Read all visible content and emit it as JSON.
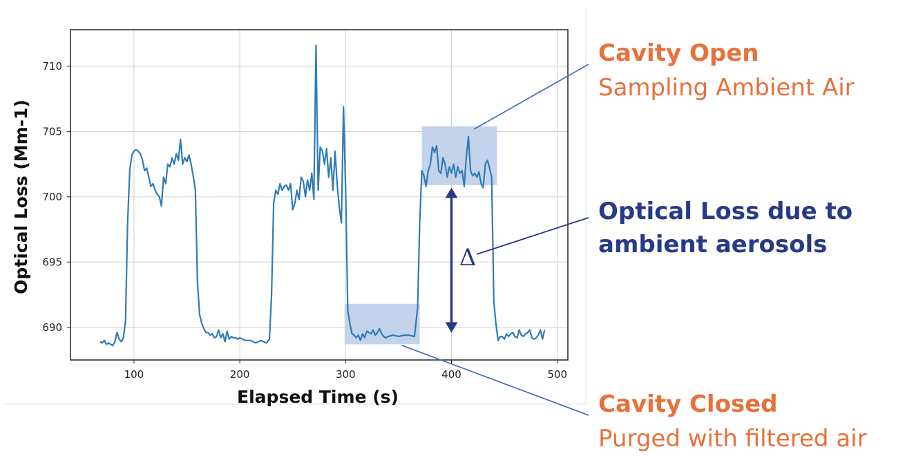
{
  "chart_data": {
    "type": "line",
    "xlabel": "Elapsed Time (s)",
    "ylabel": "Optical Loss (Mm-1)",
    "xlim": [
      40,
      510
    ],
    "ylim": [
      687.5,
      712.8
    ],
    "xticks": [
      100,
      200,
      300,
      400,
      500
    ],
    "yticks": [
      690,
      695,
      700,
      705,
      710
    ],
    "grid": true,
    "series": [
      {
        "color": "#2f7bb6",
        "x": [
          68,
          70,
          72,
          74,
          76,
          78,
          80,
          82,
          84,
          86,
          88,
          90,
          92,
          94,
          96,
          98,
          100,
          102,
          104,
          106,
          108,
          110,
          112,
          114,
          116,
          118,
          120,
          122,
          124,
          126,
          128,
          130,
          132,
          134,
          136,
          138,
          140,
          142,
          144,
          146,
          148,
          150,
          152,
          154,
          156,
          158,
          160,
          162,
          164,
          166,
          168,
          170,
          172,
          174,
          176,
          178,
          180,
          182,
          184,
          186,
          188,
          190,
          192,
          194,
          196,
          198,
          200,
          205,
          210,
          215,
          220,
          225,
          228,
          230,
          232,
          234,
          236,
          238,
          240,
          242,
          244,
          246,
          248,
          250,
          252,
          254,
          256,
          258,
          260,
          262,
          264,
          266,
          268,
          270,
          272,
          274,
          276,
          278,
          280,
          282,
          284,
          286,
          288,
          290,
          292,
          294,
          296,
          298,
          300,
          302,
          304,
          306,
          308,
          310,
          312,
          314,
          316,
          318,
          320,
          322,
          324,
          326,
          328,
          330,
          332,
          334,
          336,
          338,
          340,
          345,
          350,
          355,
          360,
          365,
          368,
          370,
          372,
          374,
          376,
          378,
          380,
          382,
          384,
          386,
          388,
          390,
          392,
          394,
          396,
          398,
          400,
          402,
          404,
          406,
          408,
          410,
          412,
          414,
          416,
          418,
          420,
          422,
          424,
          426,
          428,
          430,
          432,
          434,
          436,
          438,
          440,
          442,
          444,
          446,
          448,
          450,
          452,
          454,
          456,
          458,
          460,
          462,
          464,
          466,
          468,
          470,
          472,
          474,
          476,
          478,
          480,
          482,
          484,
          486,
          488
        ],
        "values": [
          688.9,
          688.8,
          689.0,
          688.7,
          688.8,
          688.7,
          688.6,
          688.9,
          689.6,
          689.1,
          688.9,
          689.2,
          690.5,
          698.0,
          702.0,
          703.2,
          703.5,
          703.6,
          703.5,
          703.3,
          702.8,
          702.0,
          702.2,
          701.5,
          700.8,
          701.0,
          700.5,
          700.2,
          700.0,
          699.3,
          701.5,
          701.0,
          702.5,
          702.3,
          703.0,
          702.5,
          703.3,
          702.8,
          704.4,
          702.5,
          703.0,
          702.7,
          703.2,
          702.5,
          701.6,
          700.5,
          693.5,
          691.0,
          690.3,
          689.9,
          689.6,
          689.6,
          689.4,
          689.5,
          689.2,
          689.3,
          689.8,
          689.2,
          689.5,
          688.9,
          689.7,
          689.1,
          689.3,
          689.2,
          689.2,
          689.1,
          689.2,
          689.0,
          689.0,
          688.8,
          689.0,
          688.8,
          689.1,
          692.5,
          699.5,
          700.5,
          700.2,
          701.0,
          700.5,
          700.8,
          700.9,
          700.5,
          701.0,
          699.0,
          699.5,
          700.5,
          699.8,
          701.5,
          701.2,
          700.0,
          701.3,
          700.5,
          701.8,
          699.8,
          711.6,
          700.5,
          703.8,
          703.5,
          702.5,
          703.7,
          701.5,
          703.0,
          700.5,
          703.5,
          701.0,
          699.2,
          698.0,
          706.9,
          700.5,
          691.3,
          690.3,
          689.5,
          689.4,
          689.2,
          689.4,
          689.0,
          689.5,
          689.2,
          689.7,
          689.6,
          689.5,
          689.8,
          689.4,
          689.6,
          689.9,
          689.5,
          689.3,
          689.2,
          689.3,
          689.4,
          689.3,
          689.4,
          689.4,
          689.3,
          691.5,
          698.0,
          702.0,
          701.6,
          700.8,
          702.0,
          702.5,
          703.8,
          703.4,
          703.9,
          702.0,
          701.8,
          703.0,
          702.5,
          701.5,
          702.3,
          701.8,
          702.5,
          701.5,
          702.3,
          701.8,
          702.0,
          700.8,
          703.0,
          704.6,
          702.0,
          701.6,
          701.8,
          701.5,
          701.9,
          701.0,
          700.7,
          702.5,
          702.8,
          702.2,
          701.5,
          692.0,
          690.3,
          689.0,
          689.3,
          689.3,
          689.1,
          689.5,
          689.3,
          689.5,
          689.6,
          689.3,
          689.2,
          689.8,
          689.4,
          689.3,
          689.5,
          689.6,
          689.8,
          689.2,
          689.1,
          689.2,
          689.4,
          689.8,
          689.1,
          689.8
        ]
      }
    ],
    "highlights": [
      {
        "x": [
          372,
          443
        ],
        "y": [
          700.9,
          705.4
        ],
        "color": "#b9cbe8"
      },
      {
        "x": [
          299,
          370
        ],
        "y": [
          688.7,
          691.8
        ],
        "color": "#b9cbe8"
      }
    ],
    "delta": {
      "x": 400,
      "y": [
        689.6,
        700.7
      ],
      "label": "Δ",
      "color": "#273a86"
    }
  },
  "annotations": {
    "cavity_open_title": "Cavity Open",
    "cavity_open_sub": "Sampling Ambient Air",
    "optical_loss_line1": "Optical Loss due to",
    "optical_loss_line2": "ambient aerosols",
    "cavity_closed_title": "Cavity Closed",
    "cavity_closed_sub": "Purged with filtered air",
    "title_color": "#e8703a",
    "navy_color": "#273a86"
  }
}
